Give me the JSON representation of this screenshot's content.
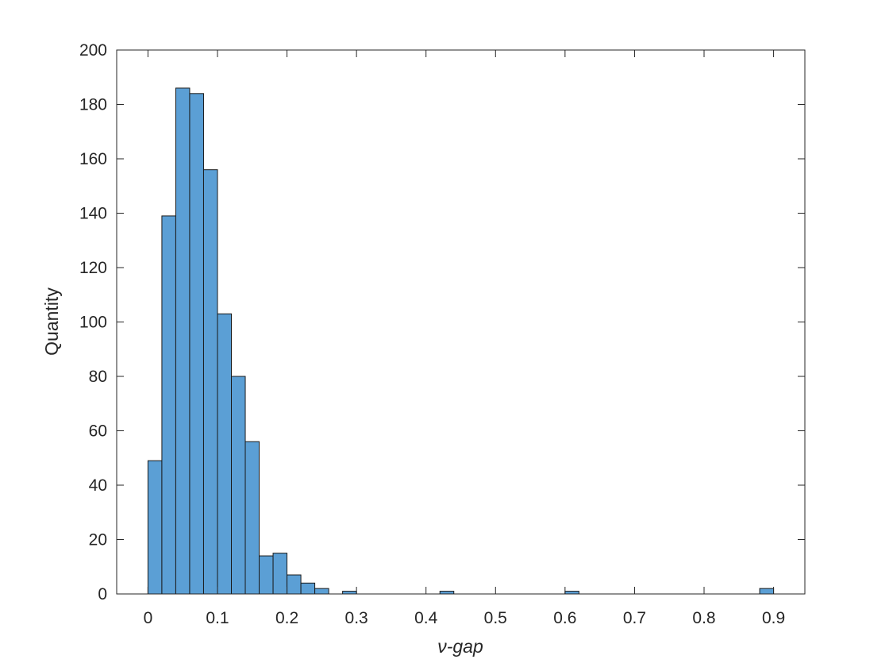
{
  "chart_data": {
    "type": "bar",
    "subtype": "histogram",
    "title": "",
    "xlabel": "ν-gap",
    "ylabel": "Quantity",
    "xlim": [
      -0.045,
      0.945
    ],
    "ylim": [
      0,
      200
    ],
    "xticks": [
      "0",
      "0.1",
      "0.2",
      "0.3",
      "0.4",
      "0.5",
      "0.6",
      "0.7",
      "0.8",
      "0.9"
    ],
    "yticks": [
      "0",
      "20",
      "40",
      "60",
      "80",
      "100",
      "120",
      "140",
      "160",
      "180",
      "200"
    ],
    "bin_width": 0.02,
    "bin_edges_start": 0,
    "values": [
      49,
      139,
      186,
      184,
      156,
      103,
      80,
      56,
      14,
      15,
      7,
      4,
      2,
      0,
      1,
      0,
      0,
      0,
      0,
      0,
      0,
      1,
      0,
      0,
      0,
      0,
      0,
      0,
      0,
      0,
      1,
      0,
      0,
      0,
      0,
      0,
      0,
      0,
      0,
      0,
      0,
      0,
      0,
      0,
      2
    ],
    "grid": false,
    "legend": "none",
    "bar_color": "#5b9fd5",
    "edge_color": "#1a1a1a"
  }
}
